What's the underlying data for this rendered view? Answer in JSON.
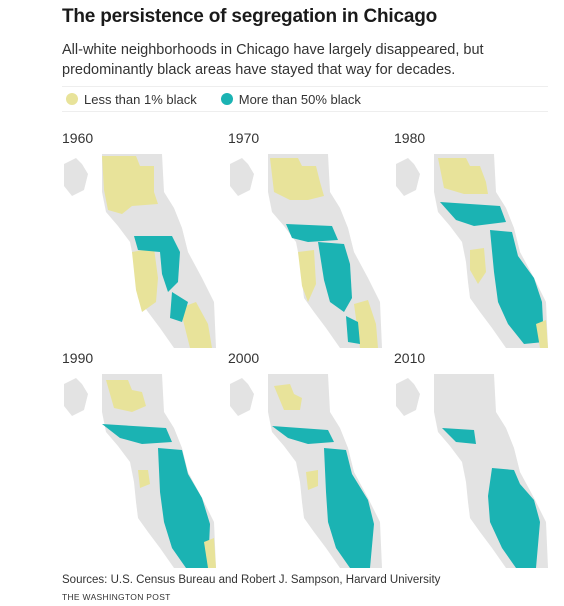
{
  "title": "The persistence of segregation in Chicago",
  "subtitle": "All-white neighborhoods in Chicago have largely disappeared, but predominantly black areas have stayed that way for decades.",
  "legend": [
    {
      "label": "Less than 1% black",
      "color": "#e8e39a"
    },
    {
      "label": "More than 50% black",
      "color": "#1bb3b3"
    }
  ],
  "colors": {
    "base": "#e3e3e3",
    "white": "#e8e39a",
    "black": "#1bb3b3"
  },
  "panels": [
    {
      "year": "1960"
    },
    {
      "year": "1970"
    },
    {
      "year": "1980"
    },
    {
      "year": "1990"
    },
    {
      "year": "2000"
    },
    {
      "year": "2010"
    }
  ],
  "source": "Sources: U.S. Census Bureau and Robert J. Sampson, Harvard University",
  "credit": "THE WASHINGTON POST"
}
